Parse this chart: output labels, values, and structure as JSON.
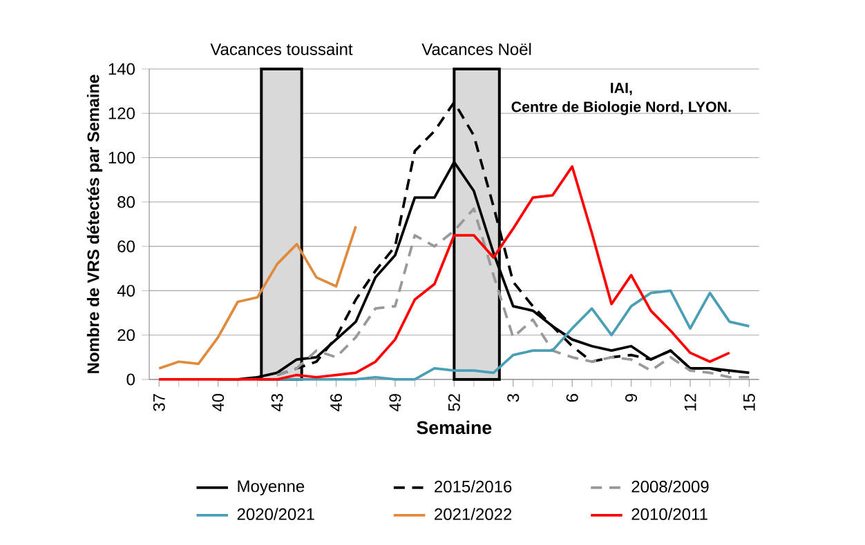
{
  "chart_data": {
    "type": "line",
    "xlabel": "Semaine",
    "ylabel": "Nombre de VRS détectés par Semaine",
    "categories": [
      "37",
      null,
      null,
      "40",
      null,
      null,
      "43",
      null,
      null,
      "46",
      null,
      null,
      "49",
      null,
      null,
      "52",
      null,
      null,
      "3",
      null,
      null,
      "6",
      null,
      null,
      "9",
      null,
      null,
      "12",
      null,
      null,
      "15"
    ],
    "ylim": [
      0,
      140
    ],
    "yticks": [
      0,
      20,
      40,
      60,
      80,
      100,
      120,
      140
    ],
    "grid": "y",
    "legend": "bottom",
    "series": [
      {
        "name": "Moyenne",
        "color": "#000000",
        "line_style": "solid",
        "values": [
          null,
          null,
          null,
          0,
          0,
          1,
          3,
          9,
          10,
          18,
          26,
          46,
          56,
          82,
          82,
          98,
          85,
          57,
          33,
          31,
          24,
          18,
          15,
          13,
          15,
          9,
          13,
          5,
          5,
          4,
          3
        ]
      },
      {
        "name": "2015/2016",
        "color": "#000000",
        "line_style": "dashed",
        "values": [
          null,
          null,
          null,
          null,
          null,
          null,
          2,
          5,
          8,
          19,
          36,
          49,
          60,
          103,
          112,
          125,
          110,
          78,
          44,
          33,
          24,
          15,
          8,
          10,
          11,
          9,
          13,
          5,
          5,
          3,
          null
        ]
      },
      {
        "name": "2008/2009",
        "color": "#999999",
        "line_style": "dashed",
        "values": [
          null,
          null,
          null,
          null,
          null,
          null,
          2,
          5,
          13,
          10,
          19,
          32,
          33,
          65,
          60,
          67,
          77,
          47,
          19,
          27,
          13,
          10,
          8,
          10,
          9,
          4,
          10,
          4,
          3,
          1,
          1
        ]
      },
      {
        "name": "2020/2021",
        "color": "#4a9fb5",
        "line_style": "solid",
        "values": [
          null,
          null,
          null,
          null,
          null,
          0,
          0,
          0,
          0,
          0,
          0,
          1,
          0,
          0,
          5,
          4,
          4,
          3,
          11,
          13,
          13,
          23,
          32,
          20,
          33,
          39,
          40,
          23,
          39,
          26,
          24
        ]
      },
      {
        "name": "2021/2022",
        "color": "#e08b3c",
        "line_style": "solid",
        "values": [
          5,
          8,
          7,
          19,
          35,
          37,
          52,
          61,
          46,
          42,
          69,
          null,
          null,
          null,
          null,
          null,
          null,
          null,
          null,
          null,
          null,
          null,
          null,
          null,
          null,
          null,
          null,
          null,
          null,
          null,
          null
        ]
      },
      {
        "name": "2010/2011",
        "color": "#ff0000",
        "line_style": "solid",
        "values": [
          0,
          0,
          0,
          0,
          0,
          0,
          0,
          2,
          1,
          2,
          3,
          8,
          18,
          36,
          43,
          65,
          65,
          55,
          68,
          82,
          83,
          96,
          66,
          34,
          47,
          31,
          22,
          12,
          8,
          12,
          null
        ]
      }
    ],
    "annotations": [
      "Vacances toussaint",
      "Vacances Noël",
      "IAI,",
      "Centre de Biologie Nord, LYON."
    ]
  }
}
